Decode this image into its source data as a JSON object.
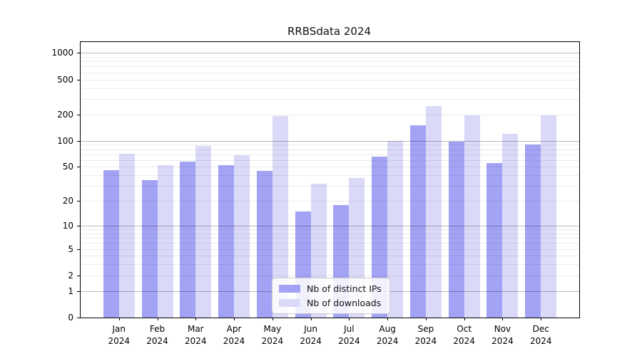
{
  "chart_data": {
    "type": "bar",
    "title": "RRBSdata 2024",
    "categories": [
      "Jan",
      "Feb",
      "Mar",
      "Apr",
      "May",
      "Jun",
      "Jul",
      "Aug",
      "Sep",
      "Oct",
      "Nov",
      "Dec"
    ],
    "category_year": "2024",
    "series": [
      {
        "name": "Nb of distinct IPs",
        "color": "#a3a3f5",
        "values": [
          46,
          35,
          58,
          52,
          45,
          15,
          18,
          66,
          150,
          97,
          56,
          91
        ]
      },
      {
        "name": "Nb of downloads",
        "color": "#dadaf8",
        "values": [
          71,
          52,
          88,
          68,
          190,
          32,
          37,
          99,
          250,
          195,
          120,
          195
        ]
      }
    ],
    "y_axis": {
      "scale": "log10(1+x)",
      "ticks": [
        0,
        1,
        2,
        5,
        10,
        20,
        50,
        100,
        200,
        500,
        1000
      ],
      "ylim": [
        0,
        1330
      ]
    },
    "grid": {
      "major": [
        1,
        10,
        100,
        1000
      ],
      "minor": [
        2,
        3,
        4,
        5,
        6,
        7,
        8,
        9,
        20,
        30,
        40,
        50,
        60,
        70,
        80,
        90,
        200,
        300,
        400,
        500,
        600,
        700,
        800,
        900
      ]
    },
    "legend_position": "bottom-center",
    "xlabel": "",
    "ylabel": ""
  }
}
